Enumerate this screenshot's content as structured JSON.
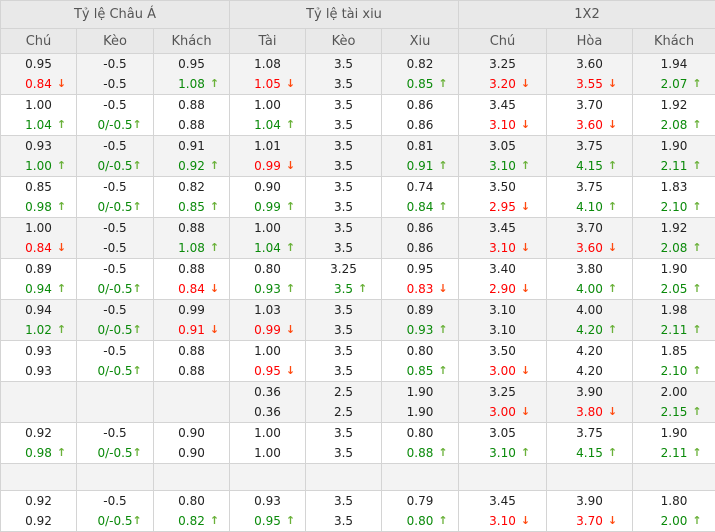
{
  "groups": [
    "Tỷ lệ Châu Á",
    "Tỷ lệ tài xiu",
    "1X2"
  ],
  "columns": [
    "Chú",
    "Kèo",
    "Khách",
    "Tài",
    "Kèo",
    "Xiu",
    "Chú",
    "Hòa",
    "Khách"
  ],
  "colors": {
    "up_text": "#0a8a0a",
    "down_text": "#ff0000",
    "up_arrow": "#6ab13a",
    "down_arrow": "#ff4a10"
  },
  "rows": [
    [
      [
        "0.95",
        "0.84",
        "d"
      ],
      [
        "-0.5",
        "-0.5",
        ""
      ],
      [
        "0.95",
        "1.08",
        "u"
      ],
      [
        "1.08",
        "1.05",
        "d"
      ],
      [
        "3.5",
        "3.5",
        ""
      ],
      [
        "0.82",
        "0.85",
        "u"
      ],
      [
        "3.25",
        "3.20",
        "d"
      ],
      [
        "3.60",
        "3.55",
        "d"
      ],
      [
        "1.94",
        "2.07",
        "u"
      ]
    ],
    [
      [
        "1.00",
        "1.04",
        "u"
      ],
      [
        "-0.5",
        "0/-0.5",
        "u"
      ],
      [
        "0.88",
        "0.88",
        ""
      ],
      [
        "1.00",
        "1.04",
        "u"
      ],
      [
        "3.5",
        "3.5",
        ""
      ],
      [
        "0.86",
        "0.86",
        ""
      ],
      [
        "3.45",
        "3.10",
        "d"
      ],
      [
        "3.70",
        "3.60",
        "d"
      ],
      [
        "1.92",
        "2.08",
        "u"
      ]
    ],
    [
      [
        "0.93",
        "1.00",
        "u"
      ],
      [
        "-0.5",
        "0/-0.5",
        "u"
      ],
      [
        "0.91",
        "0.92",
        "u"
      ],
      [
        "1.01",
        "0.99",
        "d"
      ],
      [
        "3.5",
        "3.5",
        ""
      ],
      [
        "0.81",
        "0.91",
        "u"
      ],
      [
        "3.05",
        "3.10",
        "u"
      ],
      [
        "3.75",
        "4.15",
        "u"
      ],
      [
        "1.90",
        "2.11",
        "u"
      ]
    ],
    [
      [
        "0.85",
        "0.98",
        "u"
      ],
      [
        "-0.5",
        "0/-0.5",
        "u"
      ],
      [
        "0.82",
        "0.85",
        "u"
      ],
      [
        "0.90",
        "0.99",
        "u"
      ],
      [
        "3.5",
        "3.5",
        ""
      ],
      [
        "0.74",
        "0.84",
        "u"
      ],
      [
        "3.50",
        "2.95",
        "d"
      ],
      [
        "3.75",
        "4.10",
        "u"
      ],
      [
        "1.83",
        "2.10",
        "u"
      ]
    ],
    [
      [
        "1.00",
        "0.84",
        "d"
      ],
      [
        "-0.5",
        "-0.5",
        ""
      ],
      [
        "0.88",
        "1.08",
        "u"
      ],
      [
        "1.00",
        "1.04",
        "u"
      ],
      [
        "3.5",
        "3.5",
        ""
      ],
      [
        "0.86",
        "0.86",
        ""
      ],
      [
        "3.45",
        "3.10",
        "d"
      ],
      [
        "3.70",
        "3.60",
        "d"
      ],
      [
        "1.92",
        "2.08",
        "u"
      ]
    ],
    [
      [
        "0.89",
        "0.94",
        "u"
      ],
      [
        "-0.5",
        "0/-0.5",
        "u"
      ],
      [
        "0.88",
        "0.84",
        "d"
      ],
      [
        "0.80",
        "0.93",
        "u"
      ],
      [
        "3.25",
        "3.5",
        "u"
      ],
      [
        "0.95",
        "0.83",
        "d"
      ],
      [
        "3.40",
        "2.90",
        "d"
      ],
      [
        "3.80",
        "4.00",
        "u"
      ],
      [
        "1.90",
        "2.05",
        "u"
      ]
    ],
    [
      [
        "0.94",
        "1.02",
        "u"
      ],
      [
        "-0.5",
        "0/-0.5",
        "u"
      ],
      [
        "0.99",
        "0.91",
        "d"
      ],
      [
        "1.03",
        "0.99",
        "d"
      ],
      [
        "3.5",
        "3.5",
        ""
      ],
      [
        "0.89",
        "0.93",
        "u"
      ],
      [
        "3.10",
        "3.10",
        ""
      ],
      [
        "4.00",
        "4.20",
        "u"
      ],
      [
        "1.98",
        "2.11",
        "u"
      ]
    ],
    [
      [
        "0.93",
        "0.93",
        ""
      ],
      [
        "-0.5",
        "0/-0.5",
        "u"
      ],
      [
        "0.88",
        "0.88",
        ""
      ],
      [
        "1.00",
        "0.95",
        "d"
      ],
      [
        "3.5",
        "3.5",
        ""
      ],
      [
        "0.80",
        "0.85",
        "u"
      ],
      [
        "3.50",
        "3.00",
        "d"
      ],
      [
        "4.20",
        "4.20",
        ""
      ],
      [
        "1.85",
        "2.10",
        "u"
      ]
    ],
    [
      [
        "",
        "",
        ""
      ],
      [
        "",
        "",
        ""
      ],
      [
        "",
        "",
        ""
      ],
      [
        "0.36",
        "0.36",
        ""
      ],
      [
        "2.5",
        "2.5",
        ""
      ],
      [
        "1.90",
        "1.90",
        ""
      ],
      [
        "3.25",
        "3.00",
        "d"
      ],
      [
        "3.90",
        "3.80",
        "d"
      ],
      [
        "2.00",
        "2.15",
        "u"
      ]
    ],
    [
      [
        "0.92",
        "0.98",
        "u"
      ],
      [
        "-0.5",
        "0/-0.5",
        "u"
      ],
      [
        "0.90",
        "0.90",
        ""
      ],
      [
        "1.00",
        "1.00",
        ""
      ],
      [
        "3.5",
        "3.5",
        ""
      ],
      [
        "0.80",
        "0.88",
        "u"
      ],
      [
        "3.05",
        "3.10",
        "u"
      ],
      [
        "3.75",
        "4.15",
        "u"
      ],
      [
        "1.90",
        "2.11",
        "u"
      ]
    ],
    null,
    [
      [
        "0.92",
        "0.92",
        ""
      ],
      [
        "-0.5",
        "0/-0.5",
        "u"
      ],
      [
        "0.80",
        "0.82",
        "u"
      ],
      [
        "0.93",
        "0.95",
        "u"
      ],
      [
        "3.5",
        "3.5",
        ""
      ],
      [
        "0.79",
        "0.80",
        "u"
      ],
      [
        "3.45",
        "3.10",
        "d"
      ],
      [
        "3.90",
        "3.70",
        "d"
      ],
      [
        "1.80",
        "2.00",
        "u"
      ]
    ]
  ]
}
